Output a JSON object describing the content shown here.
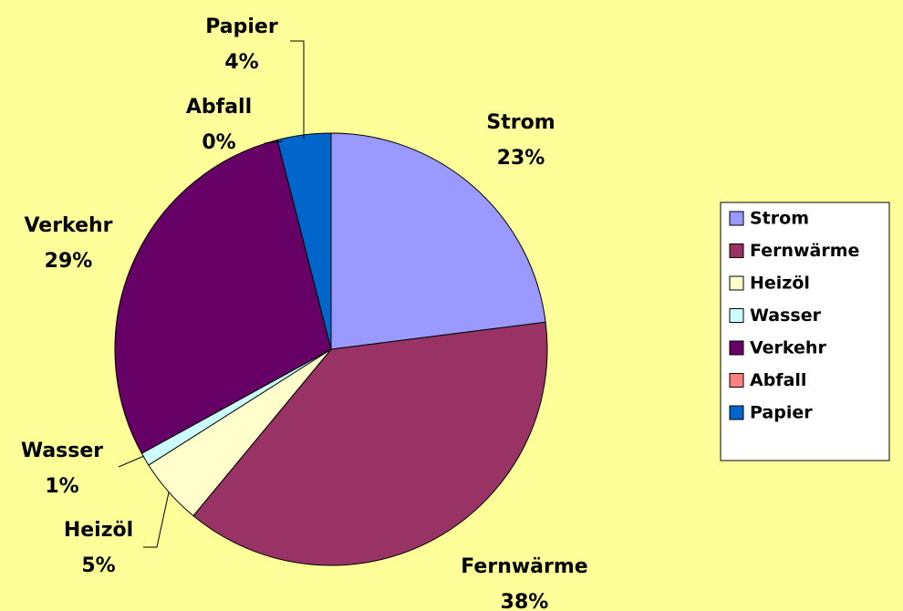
{
  "chart_data": {
    "type": "pie",
    "categories": [
      "Strom",
      "Fernwärme",
      "Heizöl",
      "Wasser",
      "Verkehr",
      "Abfall",
      "Papier"
    ],
    "values": [
      23,
      38,
      5,
      1,
      29,
      0,
      4
    ],
    "value_labels": [
      "23%",
      "38%",
      "5%",
      "1%",
      "29%",
      "0%",
      "4%"
    ],
    "colors": [
      "#9999ff",
      "#993366",
      "#ffffcc",
      "#ccffff",
      "#660066",
      "#ff8080",
      "#0066cc"
    ],
    "legend": "right"
  }
}
